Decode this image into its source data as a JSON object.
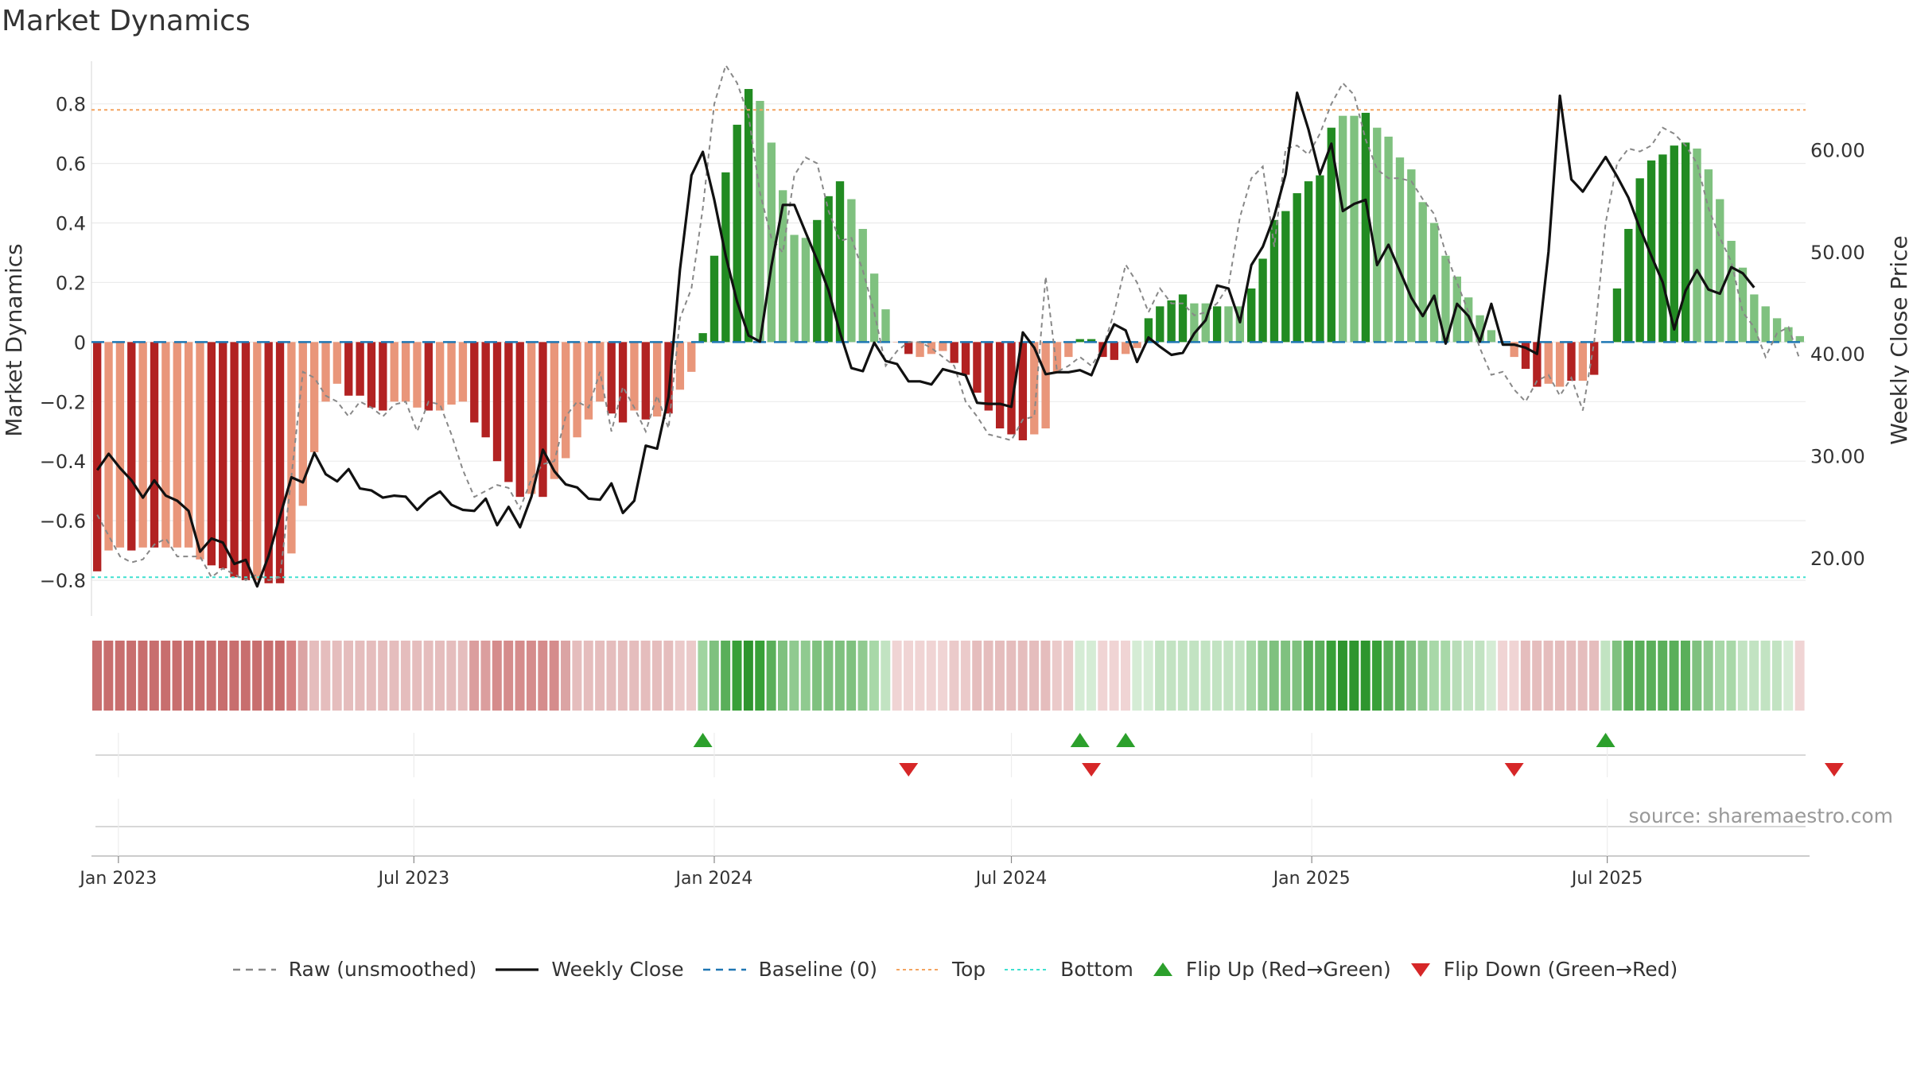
{
  "title": "Market Dynamics",
  "source_note": "source: sharemaestro.com",
  "chart_data": {
    "type": "bar",
    "x_start": "2022-12-19",
    "x_step_days": 7,
    "x_ticks": [
      "Jan 2023",
      "Jul 2023",
      "Jan 2024",
      "Jul 2024",
      "Jan 2025",
      "Jul 2025"
    ],
    "x_tick_dates": [
      "2023-01-01",
      "2023-07-01",
      "2024-01-01",
      "2024-07-01",
      "2025-01-01",
      "2025-07-01"
    ],
    "y_left": {
      "label": "Market Dynamics",
      "range": [
        -0.92,
        0.93
      ],
      "ticks": [
        -0.8,
        -0.6,
        -0.4,
        -0.2,
        0,
        0.2,
        0.4,
        0.6,
        0.8
      ],
      "tick_labels": [
        "−0.8",
        "−0.6",
        "−0.4",
        "−0.2",
        "0",
        "0.2",
        "0.4",
        "0.6",
        "0.8"
      ]
    },
    "y_right": {
      "label": "Weekly Close Price",
      "range": [
        14.3,
        68.3
      ],
      "ticks": [
        20,
        30,
        40,
        50,
        60
      ],
      "tick_labels": [
        "20.00",
        "30.00",
        "40.00",
        "50.00",
        "60.00"
      ]
    },
    "top_line": 0.78,
    "bottom_line": -0.79,
    "baseline": 0,
    "grid": true,
    "legend_position": "bottom",
    "bars": [
      -0.77,
      -0.7,
      -0.69,
      -0.7,
      -0.69,
      -0.69,
      -0.69,
      -0.69,
      -0.69,
      -0.73,
      -0.75,
      -0.76,
      -0.79,
      -0.8,
      -0.8,
      -0.81,
      -0.81,
      -0.71,
      -0.55,
      -0.37,
      -0.2,
      -0.14,
      -0.18,
      -0.18,
      -0.22,
      -0.23,
      -0.2,
      -0.2,
      -0.22,
      -0.23,
      -0.23,
      -0.21,
      -0.2,
      -0.27,
      -0.32,
      -0.4,
      -0.47,
      -0.52,
      -0.51,
      -0.52,
      -0.46,
      -0.39,
      -0.32,
      -0.26,
      -0.2,
      -0.24,
      -0.27,
      -0.23,
      -0.26,
      -0.25,
      -0.24,
      -0.16,
      -0.1,
      0.03,
      0.29,
      0.57,
      0.73,
      0.85,
      0.81,
      0.67,
      0.51,
      0.36,
      0.35,
      0.41,
      0.49,
      0.54,
      0.48,
      0.38,
      0.23,
      0.11,
      0.0,
      -0.04,
      -0.05,
      -0.04,
      -0.03,
      -0.07,
      -0.11,
      -0.17,
      -0.23,
      -0.29,
      -0.31,
      -0.33,
      -0.31,
      -0.29,
      -0.1,
      -0.05,
      0.01,
      0.01,
      -0.05,
      -0.06,
      -0.04,
      -0.02,
      0.08,
      0.12,
      0.14,
      0.16,
      0.13,
      0.13,
      0.12,
      0.12,
      0.12,
      0.18,
      0.28,
      0.41,
      0.44,
      0.5,
      0.54,
      0.56,
      0.72,
      0.76,
      0.76,
      0.77,
      0.72,
      0.69,
      0.62,
      0.58,
      0.47,
      0.4,
      0.29,
      0.22,
      0.15,
      0.09,
      0.04,
      0.0,
      -0.05,
      -0.09,
      -0.15,
      -0.14,
      -0.15,
      -0.13,
      -0.13,
      -0.11,
      0.0,
      0.18,
      0.38,
      0.55,
      0.61,
      0.63,
      0.66,
      0.67,
      0.65,
      0.58,
      0.48,
      0.34,
      0.25,
      0.16,
      0.12,
      0.08,
      0.05,
      0.02
    ],
    "bar_colors": [
      "#b22222",
      "#e9967a",
      "#e9967a",
      "#b22222",
      "#e9967a",
      "#b22222",
      "#e9967a",
      "#e9967a",
      "#e9967a",
      "#e9967a",
      "#b22222",
      "#b22222",
      "#b22222",
      "#b22222",
      "#e9967a",
      "#b22222",
      "#b22222",
      "#e9967a",
      "#e9967a",
      "#e9967a",
      "#e9967a",
      "#e9967a",
      "#b22222",
      "#b22222",
      "#b22222",
      "#b22222",
      "#e9967a",
      "#e9967a",
      "#e9967a",
      "#b22222",
      "#e9967a",
      "#e9967a",
      "#e9967a",
      "#b22222",
      "#b22222",
      "#b22222",
      "#b22222",
      "#b22222",
      "#e9967a",
      "#b22222",
      "#e9967a",
      "#e9967a",
      "#e9967a",
      "#e9967a",
      "#e9967a",
      "#b22222",
      "#b22222",
      "#e9967a",
      "#b22222",
      "#e9967a",
      "#b22222",
      "#e9967a",
      "#e9967a",
      "#228b22",
      "#228b22",
      "#228b22",
      "#228b22",
      "#228b22",
      "#7fc17f",
      "#7fc17f",
      "#7fc17f",
      "#7fc17f",
      "#7fc17f",
      "#228b22",
      "#228b22",
      "#228b22",
      "#7fc17f",
      "#7fc17f",
      "#7fc17f",
      "#7fc17f",
      "#e9967a",
      "#b22222",
      "#e9967a",
      "#e9967a",
      "#e9967a",
      "#b22222",
      "#b22222",
      "#b22222",
      "#b22222",
      "#b22222",
      "#b22222",
      "#b22222",
      "#e9967a",
      "#e9967a",
      "#e9967a",
      "#e9967a",
      "#228b22",
      "#228b22",
      "#b22222",
      "#b22222",
      "#e9967a",
      "#e9967a",
      "#228b22",
      "#228b22",
      "#228b22",
      "#228b22",
      "#7fc17f",
      "#7fc17f",
      "#228b22",
      "#7fc17f",
      "#7fc17f",
      "#228b22",
      "#228b22",
      "#228b22",
      "#228b22",
      "#228b22",
      "#228b22",
      "#228b22",
      "#228b22",
      "#7fc17f",
      "#7fc17f",
      "#228b22",
      "#7fc17f",
      "#7fc17f",
      "#7fc17f",
      "#7fc17f",
      "#7fc17f",
      "#7fc17f",
      "#7fc17f",
      "#7fc17f",
      "#7fc17f",
      "#7fc17f",
      "#7fc17f",
      "#e9967a",
      "#e9967a",
      "#b22222",
      "#b22222",
      "#e9967a",
      "#e9967a",
      "#b22222",
      "#e9967a",
      "#b22222",
      "#e9967a",
      "#228b22",
      "#228b22",
      "#228b22",
      "#228b22",
      "#228b22",
      "#228b22",
      "#228b22",
      "#7fc17f",
      "#7fc17f",
      "#7fc17f",
      "#7fc17f",
      "#7fc17f",
      "#7fc17f",
      "#7fc17f",
      "#7fc17f",
      "#7fc17f",
      "#7fc17f"
    ],
    "series": [
      {
        "name": "Raw (unsmoothed)",
        "style": "dashed",
        "color": "#888888",
        "values": [
          -0.58,
          -0.65,
          -0.72,
          -0.74,
          -0.73,
          -0.68,
          -0.66,
          -0.72,
          -0.72,
          -0.72,
          -0.79,
          -0.76,
          -0.78,
          -0.8,
          -0.78,
          -0.8,
          -0.79,
          -0.45,
          -0.1,
          -0.12,
          -0.18,
          -0.2,
          -0.25,
          -0.2,
          -0.22,
          -0.25,
          -0.21,
          -0.2,
          -0.3,
          -0.2,
          -0.21,
          -0.31,
          -0.43,
          -0.52,
          -0.5,
          -0.48,
          -0.49,
          -0.56,
          -0.46,
          -0.41,
          -0.4,
          -0.25,
          -0.2,
          -0.22,
          -0.1,
          -0.3,
          -0.15,
          -0.22,
          -0.3,
          -0.18,
          -0.29,
          0.08,
          0.18,
          0.45,
          0.8,
          0.93,
          0.87,
          0.76,
          0.5,
          0.35,
          0.3,
          0.56,
          0.62,
          0.6,
          0.44,
          0.34,
          0.35,
          0.24,
          0.1,
          -0.08,
          -0.03,
          0.0,
          0.0,
          -0.02,
          -0.05,
          -0.08,
          -0.2,
          -0.25,
          -0.31,
          -0.32,
          -0.33,
          -0.26,
          -0.25,
          0.22,
          -0.1,
          -0.08,
          -0.05,
          -0.08,
          -0.02,
          0.1,
          0.26,
          0.2,
          0.1,
          0.18,
          0.13,
          0.13,
          0.09,
          0.1,
          0.13,
          0.19,
          0.42,
          0.55,
          0.59,
          0.32,
          0.65,
          0.66,
          0.63,
          0.7,
          0.8,
          0.87,
          0.83,
          0.68,
          0.58,
          0.55,
          0.55,
          0.54,
          0.48,
          0.43,
          0.3,
          0.2,
          0.1,
          -0.02,
          -0.11,
          -0.1,
          -0.16,
          -0.2,
          -0.13,
          -0.11,
          -0.18,
          -0.12,
          -0.23,
          0.0,
          0.4,
          0.6,
          0.65,
          0.64,
          0.66,
          0.72,
          0.7,
          0.66,
          0.6,
          0.45,
          0.35,
          0.27,
          0.1,
          0.05,
          -0.05,
          0.03,
          0.05,
          -0.06
        ]
      },
      {
        "name": "Weekly Close",
        "style": "solid",
        "color": "#111111",
        "axis": "right",
        "values": [
          28.6,
          30.2,
          28.8,
          27.6,
          25.9,
          27.6,
          26.1,
          25.6,
          24.6,
          20.6,
          21.9,
          21.5,
          19.4,
          19.8,
          17.2,
          20.2,
          24.1,
          27.9,
          27.4,
          30.3,
          28.2,
          27.5,
          28.7,
          26.8,
          26.6,
          25.9,
          26.1,
          26.0,
          24.7,
          25.8,
          26.5,
          25.2,
          24.7,
          24.6,
          25.8,
          23.2,
          25.0,
          23.0,
          26.0,
          30.6,
          28.5,
          27.2,
          26.9,
          25.8,
          25.7,
          27.3,
          24.4,
          25.6,
          31.0,
          30.7,
          35.8,
          48.3,
          57.5,
          59.8,
          55.1,
          49.6,
          45.1,
          41.8,
          41.2,
          48.6,
          54.6,
          54.6,
          51.9,
          49.2,
          46.2,
          42.1,
          38.6,
          38.3,
          41.1,
          39.3,
          39.0,
          37.3,
          37.3,
          37.0,
          38.5,
          38.2,
          37.9,
          35.2,
          35.1,
          35.1,
          34.8,
          42.1,
          40.6,
          38.0,
          38.2,
          38.2,
          38.4,
          37.9,
          40.6,
          42.9,
          42.3,
          39.2,
          41.6,
          40.7,
          39.9,
          40.1,
          42.0,
          43.3,
          46.7,
          46.4,
          43.1,
          48.7,
          50.5,
          53.5,
          57.6,
          65.6,
          62.0,
          57.6,
          60.6,
          54.0,
          54.7,
          55.1,
          48.7,
          50.7,
          48.1,
          45.5,
          43.7,
          45.7,
          41.0,
          44.9,
          43.7,
          41.2,
          44.9,
          40.9,
          40.9,
          40.6,
          40.0,
          50.0,
          65.3,
          57.1,
          55.9,
          57.6,
          59.3,
          57.4,
          55.3,
          52.3,
          49.6,
          47.0,
          42.4,
          46.2,
          48.2,
          46.3,
          45.9,
          48.5,
          47.9,
          46.5
        ]
      },
      {
        "name": "Baseline (0)",
        "style": "dashed",
        "color": "#1f77b4"
      },
      {
        "name": "Top",
        "style": "dotted",
        "color": "#f4a460"
      },
      {
        "name": "Bottom",
        "style": "dotted",
        "color": "#40e0d0"
      }
    ],
    "regime_strip": [
      "#c86e6e",
      "#c86e6e",
      "#c86e6e",
      "#c86e6e",
      "#c86e6e",
      "#c86e6e",
      "#c86e6e",
      "#c86e6e",
      "#c86e6e",
      "#c86e6e",
      "#c86e6e",
      "#c86e6e",
      "#c86e6e",
      "#c86e6e",
      "#c86e6e",
      "#c86e6e",
      "#c86e6e",
      "#d48080",
      "#dba4a4",
      "#e5bdbd",
      "#e5bdbd",
      "#e5bdbd",
      "#e5bdbd",
      "#e5bdbd",
      "#e5bdbd",
      "#e5bdbd",
      "#e5bdbd",
      "#e5bdbd",
      "#e5bdbd",
      "#e5bdbd",
      "#e5bdbd",
      "#e5bdbd",
      "#e5bdbd",
      "#db9e9e",
      "#db9e9e",
      "#d58c8c",
      "#d58c8c",
      "#d58c8c",
      "#d58c8c",
      "#d58c8c",
      "#d58c8c",
      "#dba4a4",
      "#e5bdbd",
      "#e5bdbd",
      "#e5bdbd",
      "#e5bdbd",
      "#e5bdbd",
      "#e5bdbd",
      "#e5bdbd",
      "#e5bdbd",
      "#e5bdbd",
      "#ebcaca",
      "#ebcaca",
      "#a0d4a0",
      "#7fc17f",
      "#5aaf5a",
      "#38a038",
      "#2e952e",
      "#38a038",
      "#5aaf5a",
      "#7fc17f",
      "#90ca90",
      "#90ca90",
      "#7fc17f",
      "#7fc17f",
      "#7fc17f",
      "#7fc17f",
      "#90ca90",
      "#a8d8a8",
      "#c2e3c2",
      "#f0d4d4",
      "#f0d4d4",
      "#f0d4d4",
      "#f0d4d4",
      "#f0d4d4",
      "#ebcaca",
      "#ebcaca",
      "#e5bdbd",
      "#e5bdbd",
      "#e5bdbd",
      "#e5bdbd",
      "#e5bdbd",
      "#e5bdbd",
      "#e5bdbd",
      "#ebcaca",
      "#ebcaca",
      "#d5ecd5",
      "#d5ecd5",
      "#f0d4d4",
      "#f0d4d4",
      "#f0d4d4",
      "#d5ecd5",
      "#d5ecd5",
      "#c2e3c2",
      "#c2e3c2",
      "#c2e3c2",
      "#c2e3c2",
      "#c2e3c2",
      "#c2e3c2",
      "#c2e3c2",
      "#c2e3c2",
      "#a8d8a8",
      "#90ca90",
      "#7fc17f",
      "#7fc17f",
      "#7fc17f",
      "#5aaf5a",
      "#5aaf5a",
      "#38a038",
      "#2e952e",
      "#2e952e",
      "#2e952e",
      "#38a038",
      "#5aaf5a",
      "#5aaf5a",
      "#7fc17f",
      "#90ca90",
      "#a8d8a8",
      "#a8d8a8",
      "#b8ddb8",
      "#c2e3c2",
      "#c2e3c2",
      "#d5ecd5",
      "#f0d4d4",
      "#f0d4d4",
      "#e5bdbd",
      "#e5bdbd",
      "#e5bdbd",
      "#e5bdbd",
      "#e5bdbd",
      "#e5bdbd",
      "#e5bdbd",
      "#c2e3c2",
      "#7fc17f",
      "#5aaf5a",
      "#5aaf5a",
      "#5aaf5a",
      "#5aaf5a",
      "#5aaf5a",
      "#5aaf5a",
      "#7fc17f",
      "#90ca90",
      "#a8d8a8",
      "#a8d8a8",
      "#c2e3c2",
      "#c2e3c2",
      "#c2e3c2",
      "#c2e3c2",
      "#d5ecd5",
      "#f0d4d4"
    ],
    "flips_up": [
      53,
      86,
      90,
      132
    ],
    "flips_down": [
      71,
      87,
      124,
      152
    ],
    "legend": [
      {
        "label": "Raw (unsmoothed)",
        "marker": "dashed-line",
        "color": "#888888"
      },
      {
        "label": "Weekly Close",
        "marker": "solid-line",
        "color": "#111111"
      },
      {
        "label": "Baseline (0)",
        "marker": "dashed-line",
        "color": "#1f77b4"
      },
      {
        "label": "Top",
        "marker": "dotted-line",
        "color": "#f4a460"
      },
      {
        "label": "Bottom",
        "marker": "dotted-line",
        "color": "#40e0d0"
      },
      {
        "label": "Flip Up (Red→Green)",
        "marker": "triangle-up",
        "color": "#2ca02c"
      },
      {
        "label": "Flip Down (Green→Red)",
        "marker": "triangle-down",
        "color": "#d62728"
      }
    ]
  }
}
